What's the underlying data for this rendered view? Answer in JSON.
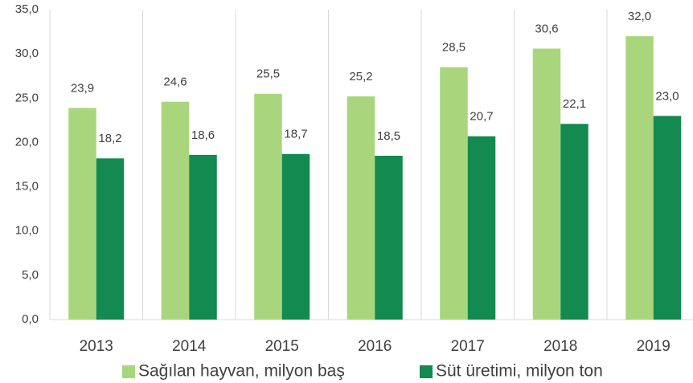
{
  "chart_data": {
    "type": "bar",
    "categories": [
      "2013",
      "2014",
      "2015",
      "2016",
      "2017",
      "2018",
      "2019"
    ],
    "series": [
      {
        "name": "Sağılan hayvan, milyon baş",
        "color": "#a9d67c",
        "values": [
          23.9,
          24.6,
          25.5,
          25.2,
          28.5,
          30.6,
          32.0
        ],
        "value_labels": [
          "23,9",
          "24,6",
          "25,5",
          "25,2",
          "28,5",
          "30,6",
          "32,0"
        ]
      },
      {
        "name": "Süt üretimi, milyon ton",
        "color": "#138a50",
        "values": [
          18.2,
          18.6,
          18.7,
          18.5,
          20.7,
          22.1,
          23.0
        ],
        "value_labels": [
          "18,2",
          "18,6",
          "18,7",
          "18,5",
          "20,7",
          "22,1",
          "23,0"
        ]
      }
    ],
    "ylim": [
      0,
      35
    ],
    "yticks": [
      {
        "value": 0,
        "label": "0,0"
      },
      {
        "value": 5,
        "label": "5,0"
      },
      {
        "value": 10,
        "label": "10,0"
      },
      {
        "value": 15,
        "label": "15,0"
      },
      {
        "value": 20,
        "label": "20,0"
      },
      {
        "value": 25,
        "label": "25,0"
      },
      {
        "value": 30,
        "label": "30,0"
      },
      {
        "value": 35,
        "label": "35,0"
      }
    ],
    "legend": "bottom"
  }
}
